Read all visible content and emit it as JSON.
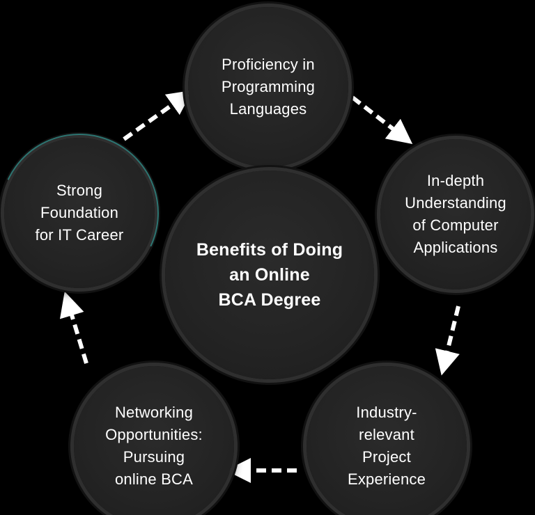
{
  "diagram": {
    "center": "Benefits of Doing\nan Online\nBCA Degree",
    "nodes": {
      "top": "Proficiency in\nProgramming\nLanguages",
      "right": "In-depth\nUnderstanding\nof Computer\nApplications",
      "bottom_right": "Industry-\nrelevant\nProject\nExperience",
      "bottom_left": "Networking\nOpportunities:\nPursuing\nonline BCA",
      "left": "Strong\nFoundation\nfor IT Career"
    },
    "colors": {
      "background": "#000000",
      "node_fill": "#232323",
      "node_ring": "#2f2f2f",
      "text": "#ffffff",
      "arrow": "#ffffff",
      "accent": "#2f8a86"
    }
  }
}
